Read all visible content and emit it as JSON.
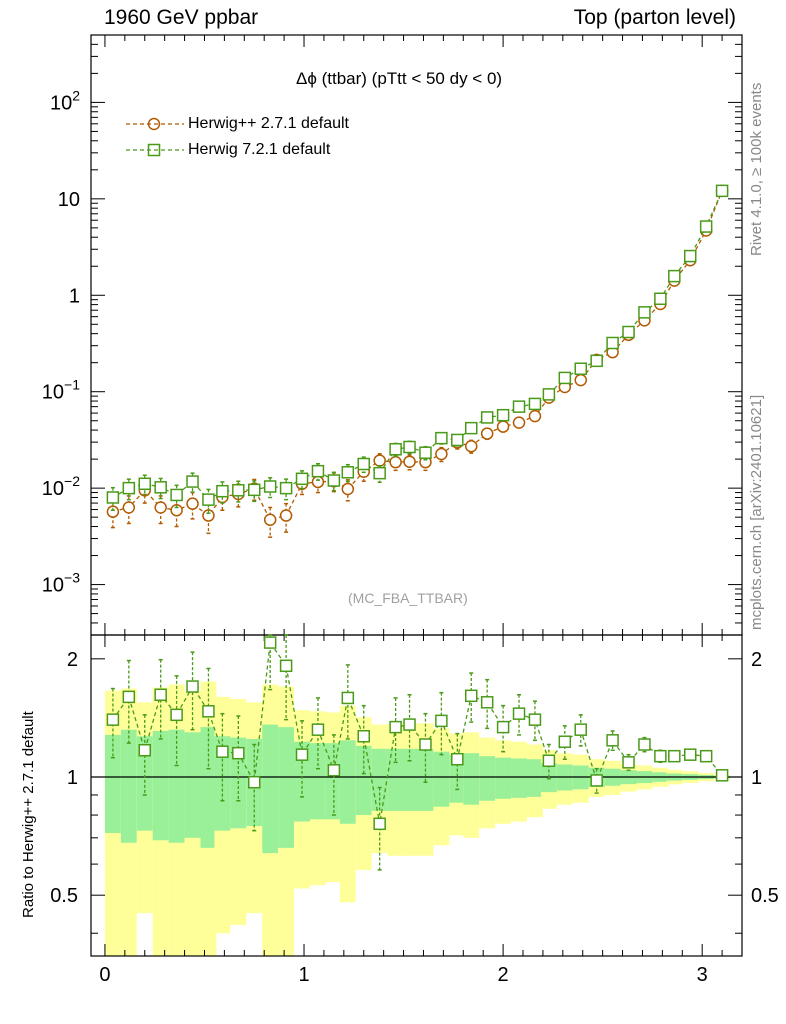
{
  "header": {
    "left": "1960 GeV ppbar",
    "right": "Top (parton level)"
  },
  "side_labels": {
    "rivet": "Rivet 4.1.0, ≥ 100k events",
    "mcplots": "mcplots.cern.ch [arXiv:2401.10621]"
  },
  "chart_data": {
    "type": "line",
    "title": "Δϕ (ttbar) (pTtt < 50 dy < 0)",
    "watermark": "(MC_FBA_TTBAR)",
    "xlabel": "",
    "ylabel": "",
    "ratio_ylabel": "Ratio to Herwig++ 2.7.1 default",
    "xlim": [
      -0.07,
      3.2
    ],
    "ylim": [
      0.0003,
      500
    ],
    "yscale": "log",
    "ratio_ylim": [
      0.35,
      2.3
    ],
    "x_ticks": [
      "0",
      "1",
      "2",
      "3"
    ],
    "y_ticks": [
      "10^-3",
      "10^-2",
      "10^-1",
      "1",
      "10",
      "10^2"
    ],
    "ratio_ticks": [
      "0.5",
      "1",
      "2"
    ],
    "legend": [
      "Herwig++ 2.7.1 default",
      "Herwig 7.2.1 default"
    ],
    "x": [
      0.04,
      0.12,
      0.2,
      0.28,
      0.36,
      0.44,
      0.52,
      0.59,
      0.67,
      0.75,
      0.83,
      0.91,
      0.99,
      1.07,
      1.15,
      1.22,
      1.3,
      1.38,
      1.46,
      1.53,
      1.61,
      1.69,
      1.77,
      1.84,
      1.92,
      2.0,
      2.08,
      2.16,
      2.23,
      2.31,
      2.39,
      2.47,
      2.55,
      2.63,
      2.71,
      2.79,
      2.86,
      2.94,
      3.02,
      3.1
    ],
    "series": [
      {
        "name": "Herwig++ 2.7.1 default",
        "color": "#b35a00",
        "marker": "circle",
        "values": [
          0.0057,
          0.0063,
          0.0095,
          0.0063,
          0.0059,
          0.0069,
          0.0052,
          0.0081,
          0.0087,
          0.0099,
          0.0047,
          0.0052,
          0.0111,
          0.0116,
          0.0118,
          0.0098,
          0.0148,
          0.0193,
          0.0186,
          0.0188,
          0.0186,
          0.0226,
          0.0298,
          0.0272,
          0.0368,
          0.0435,
          0.0478,
          0.0558,
          0.0868,
          0.112,
          0.132,
          0.214,
          0.257,
          0.389,
          0.549,
          0.812,
          1.42,
          2.31,
          4.7,
          12.1
        ],
        "errors": [
          0.0018,
          0.002,
          0.0025,
          0.002,
          0.0019,
          0.0021,
          0.0018,
          0.0022,
          0.0023,
          0.0024,
          0.0016,
          0.0017,
          0.0025,
          0.0026,
          0.0026,
          0.0024,
          0.003,
          0.0034,
          0.0033,
          0.0033,
          0.0033,
          0.0037,
          0.0043,
          0.0041,
          0.0047,
          0.0052,
          0.0055,
          0.006,
          0.0074,
          0.0085,
          0.0092,
          0.012,
          0.013,
          0.016,
          0.019,
          0.023,
          0.03,
          0.039,
          0.055,
          0.088
        ],
        "ratio": [
          1,
          1,
          1,
          1,
          1,
          1,
          1,
          1,
          1,
          1,
          1,
          1,
          1,
          1,
          1,
          1,
          1,
          1,
          1,
          1,
          1,
          1,
          1,
          1,
          1,
          1,
          1,
          1,
          1,
          1,
          1,
          1,
          1,
          1,
          1,
          1,
          1,
          1,
          1,
          1
        ],
        "ratio_band_1sigma": [
          0.28,
          0.32,
          0.27,
          0.31,
          0.32,
          0.3,
          0.34,
          0.27,
          0.26,
          0.25,
          0.36,
          0.34,
          0.23,
          0.22,
          0.22,
          0.24,
          0.2,
          0.18,
          0.18,
          0.18,
          0.18,
          0.16,
          0.14,
          0.15,
          0.13,
          0.12,
          0.115,
          0.11,
          0.085,
          0.076,
          0.07,
          0.056,
          0.05,
          0.041,
          0.035,
          0.028,
          0.021,
          0.017,
          0.012,
          0.007
        ],
        "ratio_band_2sigma": [
          0.66,
          0.68,
          0.55,
          0.69,
          0.72,
          0.65,
          0.75,
          0.6,
          0.58,
          0.55,
          0.72,
          0.7,
          0.48,
          0.47,
          0.46,
          0.52,
          0.42,
          0.36,
          0.37,
          0.37,
          0.37,
          0.33,
          0.29,
          0.3,
          0.26,
          0.24,
          0.23,
          0.21,
          0.17,
          0.15,
          0.14,
          0.11,
          0.1,
          0.082,
          0.07,
          0.056,
          0.042,
          0.034,
          0.024,
          0.014
        ]
      },
      {
        "name": "Herwig 7.2.1 default",
        "color": "#4a9a1a",
        "marker": "square",
        "values": [
          0.008,
          0.01,
          0.0111,
          0.0102,
          0.0085,
          0.0117,
          0.0076,
          0.0093,
          0.0095,
          0.0096,
          0.0104,
          0.01,
          0.0125,
          0.015,
          0.012,
          0.0146,
          0.0178,
          0.0143,
          0.0253,
          0.0267,
          0.0233,
          0.033,
          0.0316,
          0.0419,
          0.0541,
          0.0571,
          0.07,
          0.0747,
          0.0938,
          0.139,
          0.173,
          0.209,
          0.32,
          0.416,
          0.665,
          0.92,
          1.58,
          2.55,
          5.16,
          12.1
        ],
        "errors": [
          0.0021,
          0.0024,
          0.0025,
          0.0024,
          0.0022,
          0.0026,
          0.0021,
          0.0023,
          0.0023,
          0.0023,
          0.0024,
          0.0024,
          0.0026,
          0.0029,
          0.0026,
          0.0029,
          0.0032,
          0.0028,
          0.0038,
          0.0039,
          0.0036,
          0.0043,
          0.0042,
          0.0048,
          0.0055,
          0.0056,
          0.0062,
          0.0064,
          0.0072,
          0.0088,
          0.0098,
          0.011,
          0.014,
          0.016,
          0.02,
          0.024,
          0.031,
          0.04,
          0.057,
          0.088
        ],
        "ratio": [
          1.4,
          1.6,
          1.17,
          1.62,
          1.44,
          1.7,
          1.47,
          1.16,
          1.15,
          0.97,
          2.2,
          1.92,
          1.14,
          1.32,
          1.04,
          1.59,
          1.27,
          0.76,
          1.34,
          1.36,
          1.21,
          1.39,
          1.11,
          1.61,
          1.55,
          1.34,
          1.45,
          1.4,
          1.1,
          1.23,
          1.32,
          0.98,
          1.24,
          1.09,
          1.21,
          1.13,
          1.13,
          1.14,
          1.13,
          1.01
        ],
        "ratio_errors": [
          0.28,
          0.38,
          0.27,
          0.37,
          0.37,
          0.38,
          0.42,
          0.29,
          0.28,
          0.24,
          0.53,
          0.52,
          0.25,
          0.27,
          0.24,
          0.34,
          0.25,
          0.18,
          0.25,
          0.26,
          0.24,
          0.25,
          0.18,
          0.23,
          0.22,
          0.18,
          0.17,
          0.16,
          0.11,
          0.12,
          0.12,
          0.07,
          0.07,
          0.05,
          0.05,
          0.04,
          0.03,
          0.025,
          0.02,
          0.012
        ]
      }
    ]
  }
}
